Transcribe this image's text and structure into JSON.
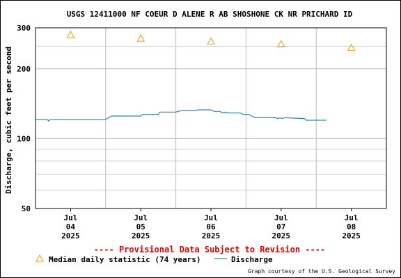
{
  "chart_data": {
    "type": "line",
    "title": "USGS 12411000 NF COEUR D ALENE R AB SHOSHONE CK NR PRICHARD ID",
    "ylabel": "Discharge, cubic feet per second",
    "xlabel": "",
    "y_scale": "log",
    "ylim": [
      50,
      300
    ],
    "y_ticks": [
      {
        "value": 50,
        "label": "50"
      },
      {
        "value": 100,
        "label": "100"
      },
      {
        "value": 200,
        "label": "200"
      },
      {
        "value": 300,
        "label": "300"
      }
    ],
    "y_minor_gridlines": [
      60,
      70,
      80,
      90,
      250
    ],
    "xlim": [
      "2025-07-03T12:00",
      "2025-07-08T12:00"
    ],
    "x_ticks": [
      {
        "value": "2025-07-04T00:00",
        "line1": "Jul",
        "line2": "04",
        "line3": "2025"
      },
      {
        "value": "2025-07-05T00:00",
        "line1": "Jul",
        "line2": "05",
        "line3": "2025"
      },
      {
        "value": "2025-07-06T00:00",
        "line1": "Jul",
        "line2": "06",
        "line3": "2025"
      },
      {
        "value": "2025-07-07T00:00",
        "line1": "Jul",
        "line2": "07",
        "line3": "2025"
      },
      {
        "value": "2025-07-08T00:00",
        "line1": "Jul",
        "line2": "08",
        "line3": "2025"
      }
    ],
    "grid": true,
    "series": [
      {
        "name": "Median daily statistic (74 years)",
        "marker": "triangle",
        "color": "#e8a000",
        "points": [
          {
            "x": "2025-07-04T00:00",
            "y": 280
          },
          {
            "x": "2025-07-05T00:00",
            "y": 270
          },
          {
            "x": "2025-07-06T00:00",
            "y": 262
          },
          {
            "x": "2025-07-07T00:00",
            "y": 255
          },
          {
            "x": "2025-07-08T00:00",
            "y": 246
          }
        ]
      },
      {
        "name": "Discharge",
        "marker": "line",
        "color": "#2e86ab",
        "points": [
          {
            "x": "2025-07-03T12:00",
            "y": 121
          },
          {
            "x": "2025-07-03T16:00",
            "y": 121
          },
          {
            "x": "2025-07-03T16:30",
            "y": 119
          },
          {
            "x": "2025-07-03T17:00",
            "y": 121
          },
          {
            "x": "2025-07-04T12:00",
            "y": 121
          },
          {
            "x": "2025-07-04T13:00",
            "y": 123
          },
          {
            "x": "2025-07-04T14:00",
            "y": 125
          },
          {
            "x": "2025-07-05T00:00",
            "y": 125
          },
          {
            "x": "2025-07-05T00:30",
            "y": 127
          },
          {
            "x": "2025-07-05T06:00",
            "y": 127
          },
          {
            "x": "2025-07-05T06:30",
            "y": 130
          },
          {
            "x": "2025-07-05T12:00",
            "y": 130
          },
          {
            "x": "2025-07-05T13:00",
            "y": 131
          },
          {
            "x": "2025-07-05T14:00",
            "y": 132
          },
          {
            "x": "2025-07-05T18:00",
            "y": 132
          },
          {
            "x": "2025-07-05T20:00",
            "y": 133
          },
          {
            "x": "2025-07-06T00:00",
            "y": 133
          },
          {
            "x": "2025-07-06T01:00",
            "y": 131
          },
          {
            "x": "2025-07-06T03:00",
            "y": 131
          },
          {
            "x": "2025-07-06T04:00",
            "y": 129
          },
          {
            "x": "2025-07-06T05:00",
            "y": 130
          },
          {
            "x": "2025-07-06T06:00",
            "y": 129
          },
          {
            "x": "2025-07-06T10:00",
            "y": 129
          },
          {
            "x": "2025-07-06T11:00",
            "y": 127
          },
          {
            "x": "2025-07-06T13:00",
            "y": 127
          },
          {
            "x": "2025-07-06T14:00",
            "y": 125
          },
          {
            "x": "2025-07-06T15:00",
            "y": 123
          },
          {
            "x": "2025-07-06T22:00",
            "y": 123
          },
          {
            "x": "2025-07-06T23:00",
            "y": 122
          },
          {
            "x": "2025-07-06T23:30",
            "y": 123
          },
          {
            "x": "2025-07-07T00:30",
            "y": 122
          },
          {
            "x": "2025-07-07T01:00",
            "y": 123
          },
          {
            "x": "2025-07-07T08:00",
            "y": 122
          },
          {
            "x": "2025-07-07T08:30",
            "y": 120
          },
          {
            "x": "2025-07-07T15:30",
            "y": 120
          }
        ]
      }
    ]
  },
  "banner": {
    "text": "---- Provisional Data Subject to Revision ----",
    "color": "#e00000"
  },
  "legend": {
    "placement": "bottom-left",
    "median_label": "Median daily statistic (74 years)",
    "discharge_label": "Discharge"
  },
  "credit": "Graph courtesy of the U.S. Geological Survey"
}
